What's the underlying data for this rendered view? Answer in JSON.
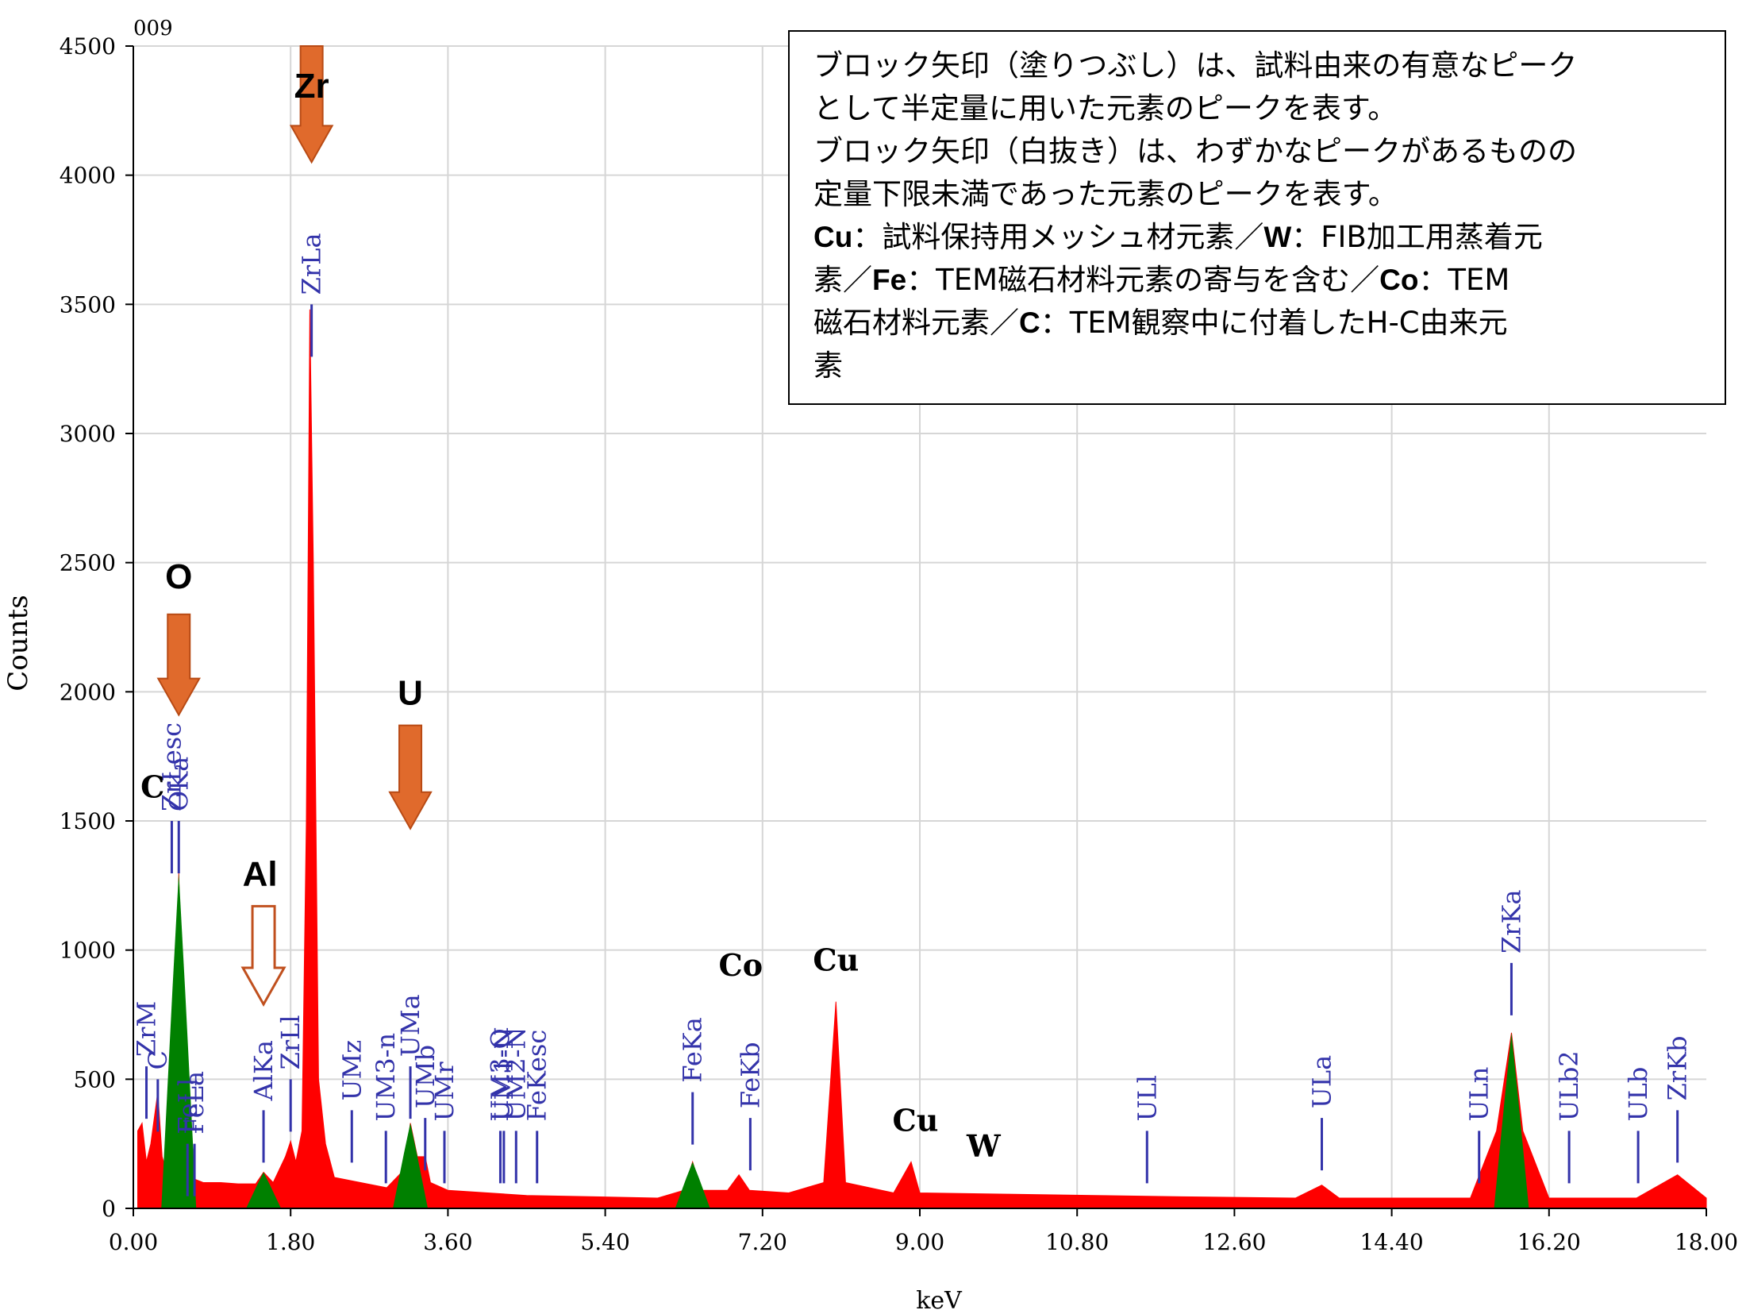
{
  "chart_data": {
    "type": "area",
    "title": "",
    "corner_label": "009",
    "xlabel": "keV",
    "ylabel": "Counts",
    "xlim": [
      0,
      18
    ],
    "ylim": [
      0,
      4500
    ],
    "x_ticks": [
      "0.00",
      "1.80",
      "3.60",
      "5.40",
      "7.20",
      "9.00",
      "10.80",
      "12.60",
      "14.40",
      "16.20",
      "18.00"
    ],
    "y_ticks": [
      "0",
      "500",
      "1000",
      "1500",
      "2000",
      "2500",
      "3000",
      "3500",
      "4000",
      "4500"
    ],
    "grid": true,
    "colors": {
      "spectrum": "#ff0000",
      "identified": "#008000",
      "line_marker": "#3333aa",
      "arrow_fill": "#e06a2c",
      "arrow_stroke": "#b84a14",
      "outline_arrow": "#c0501e"
    },
    "spectrum": [
      [
        0.05,
        300
      ],
      [
        0.1,
        330
      ],
      [
        0.15,
        180
      ],
      [
        0.2,
        250
      ],
      [
        0.28,
        450
      ],
      [
        0.33,
        200
      ],
      [
        0.4,
        120
      ],
      [
        0.46,
        400
      ],
      [
        0.52,
        1300
      ],
      [
        0.58,
        300
      ],
      [
        0.65,
        120
      ],
      [
        0.8,
        100
      ],
      [
        1.0,
        100
      ],
      [
        1.2,
        95
      ],
      [
        1.4,
        95
      ],
      [
        1.49,
        140
      ],
      [
        1.6,
        100
      ],
      [
        1.74,
        200
      ],
      [
        1.8,
        260
      ],
      [
        1.86,
        180
      ],
      [
        1.93,
        300
      ],
      [
        1.98,
        1500
      ],
      [
        2.02,
        3480
      ],
      [
        2.06,
        2500
      ],
      [
        2.12,
        500
      ],
      [
        2.2,
        250
      ],
      [
        2.3,
        120
      ],
      [
        2.6,
        100
      ],
      [
        2.9,
        80
      ],
      [
        3.1,
        150
      ],
      [
        3.17,
        330
      ],
      [
        3.25,
        200
      ],
      [
        3.34,
        200
      ],
      [
        3.4,
        100
      ],
      [
        3.6,
        70
      ],
      [
        4.5,
        50
      ],
      [
        6.0,
        40
      ],
      [
        6.3,
        70
      ],
      [
        6.4,
        180
      ],
      [
        6.5,
        70
      ],
      [
        6.8,
        70
      ],
      [
        6.93,
        130
      ],
      [
        7.05,
        70
      ],
      [
        7.5,
        60
      ],
      [
        7.9,
        100
      ],
      [
        8.04,
        800
      ],
      [
        8.15,
        100
      ],
      [
        8.7,
        60
      ],
      [
        8.9,
        180
      ],
      [
        9.0,
        60
      ],
      [
        10,
        55
      ],
      [
        11,
        50
      ],
      [
        12,
        45
      ],
      [
        13.3,
        40
      ],
      [
        13.6,
        90
      ],
      [
        13.8,
        40
      ],
      [
        15.3,
        40
      ],
      [
        15.6,
        300
      ],
      [
        15.77,
        680
      ],
      [
        15.9,
        300
      ],
      [
        16.2,
        40
      ],
      [
        17.2,
        40
      ],
      [
        17.67,
        130
      ],
      [
        18,
        40
      ]
    ],
    "identified_peaks": [
      [
        0.52,
        1300
      ],
      [
        1.49,
        140
      ],
      [
        3.17,
        330
      ],
      [
        6.4,
        180
      ],
      [
        15.77,
        680
      ]
    ],
    "line_markers": [
      {
        "label": "ZrM",
        "x": 0.15,
        "y": 550
      },
      {
        "label": "C",
        "x": 0.28,
        "y": 500
      },
      {
        "label": "ZrLesc",
        "x": 0.44,
        "y": 1500
      },
      {
        "label": "OKa",
        "x": 0.52,
        "y": 1500
      },
      {
        "label": "FeLl",
        "x": 0.62,
        "y": 250
      },
      {
        "label": "FeLa",
        "x": 0.7,
        "y": 250
      },
      {
        "label": "AlKa",
        "x": 1.49,
        "y": 380
      },
      {
        "label": "ZrLl",
        "x": 1.8,
        "y": 500
      },
      {
        "label": "ZrLa",
        "x": 2.04,
        "y": 3500
      },
      {
        "label": "UMz",
        "x": 2.5,
        "y": 380
      },
      {
        "label": "UM3-n",
        "x": 2.89,
        "y": 300
      },
      {
        "label": "UMa",
        "x": 3.17,
        "y": 550
      },
      {
        "label": "UMb",
        "x": 3.34,
        "y": 350
      },
      {
        "label": "UMr",
        "x": 3.56,
        "y": 300
      },
      {
        "label": "UM3-O",
        "x": 4.2,
        "y": 300
      },
      {
        "label": "UM1-N",
        "x": 4.24,
        "y": 300
      },
      {
        "label": "UM2-N",
        "x": 4.38,
        "y": 300
      },
      {
        "label": "FeKesc",
        "x": 4.62,
        "y": 300
      },
      {
        "label": "FeKa",
        "x": 6.4,
        "y": 450
      },
      {
        "label": "FeKb",
        "x": 7.06,
        "y": 350
      },
      {
        "label": "ULl",
        "x": 11.6,
        "y": 300
      },
      {
        "label": "ULa",
        "x": 13.6,
        "y": 350
      },
      {
        "label": "ULn",
        "x": 15.4,
        "y": 300
      },
      {
        "label": "ZrKa",
        "x": 15.77,
        "y": 950
      },
      {
        "label": "ULb2",
        "x": 16.43,
        "y": 300
      },
      {
        "label": "ULb",
        "x": 17.22,
        "y": 300
      },
      {
        "label": "ZrKb",
        "x": 17.67,
        "y": 380
      }
    ],
    "element_labels": [
      {
        "text": "Zr",
        "x": 2.04,
        "y": 4300,
        "style": "sans"
      },
      {
        "text": "O",
        "x": 0.52,
        "y": 2400,
        "style": "sans"
      },
      {
        "text": "U",
        "x": 3.17,
        "y": 1950,
        "style": "sans"
      },
      {
        "text": "Al",
        "x": 1.45,
        "y": 1250,
        "style": "sans"
      },
      {
        "text": "C",
        "x": 0.22,
        "y": 1590,
        "style": "serif"
      },
      {
        "text": "Co",
        "x": 6.95,
        "y": 900,
        "style": "serif"
      },
      {
        "text": "Cu",
        "x": 8.04,
        "y": 920,
        "style": "serif"
      },
      {
        "text": "Cu",
        "x": 8.95,
        "y": 300,
        "style": "serif"
      },
      {
        "text": "W",
        "x": 9.73,
        "y": 200,
        "style": "serif"
      }
    ],
    "filled_arrows": [
      {
        "element": "Zr",
        "x": 2.04,
        "y_top": 4500,
        "y_tip": 4050
      },
      {
        "element": "O",
        "x": 0.52,
        "y_top": 2300,
        "y_tip": 1910
      },
      {
        "element": "U",
        "x": 3.17,
        "y_top": 1870,
        "y_tip": 1470
      }
    ],
    "outline_arrows": [
      {
        "element": "Al",
        "x": 1.49,
        "y_top": 1170,
        "y_tip": 790
      }
    ]
  },
  "note": {
    "lines": [
      [
        {
          "t": "ブロック矢印（塗りつぶし）は、試料由来の有意なピーク"
        }
      ],
      [
        {
          "t": "として半定量に用いた元素のピークを表す。"
        }
      ],
      [
        {
          "t": "ブロック矢印（白抜き）は、わずかなピークがあるものの"
        }
      ],
      [
        {
          "t": "定量下限未満であった元素のピークを表す。"
        }
      ],
      [
        {
          "t": "Cu",
          "b": true
        },
        {
          "t": "：試料保持用メッシュ材元素／"
        },
        {
          "t": "W",
          "b": true
        },
        {
          "t": "：FIB加工用蒸着元"
        }
      ],
      [
        {
          "t": "素／"
        },
        {
          "t": "Fe",
          "b": true
        },
        {
          "t": "：TEM磁石材料元素の寄与を含む／"
        },
        {
          "t": "Co",
          "b": true
        },
        {
          "t": "：TEM"
        }
      ],
      [
        {
          "t": "磁石材料元素／"
        },
        {
          "t": "C",
          "b": true
        },
        {
          "t": "：TEM観察中に付着したH-C由来元"
        }
      ],
      [
        {
          "t": "素"
        }
      ]
    ]
  }
}
